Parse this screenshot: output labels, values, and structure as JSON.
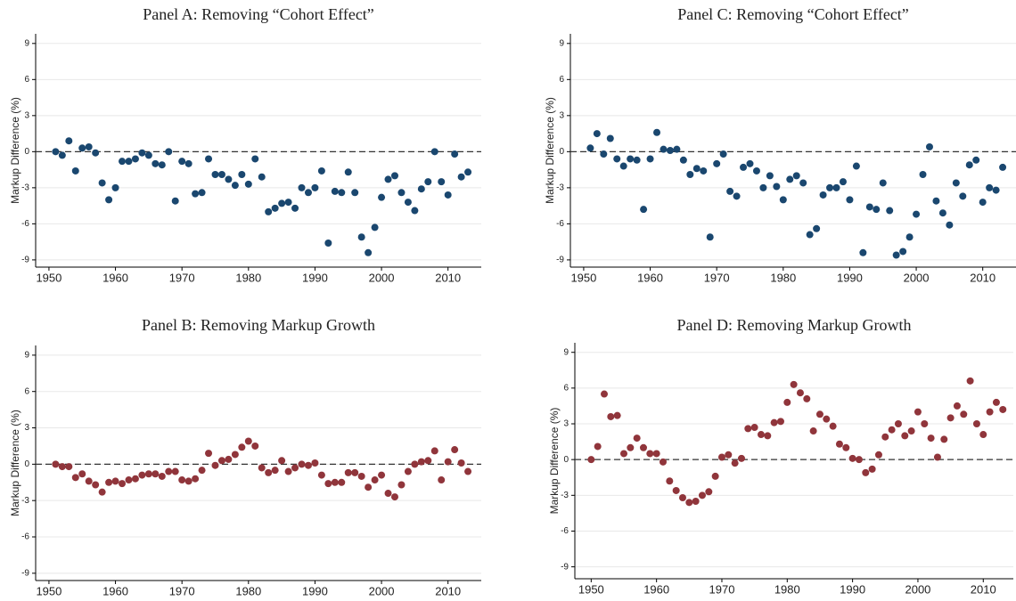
{
  "chart_data": [
    {
      "type": "scatter",
      "title": "Panel A: Removing “Cohort Effect”",
      "y_label": "Markup Difference (%)",
      "color": "#1a476f",
      "x": [
        1951,
        1952,
        1953,
        1954,
        1955,
        1956,
        1957,
        1958,
        1959,
        1960,
        1961,
        1962,
        1963,
        1964,
        1965,
        1966,
        1967,
        1968,
        1969,
        1970,
        1971,
        1972,
        1973,
        1974,
        1975,
        1976,
        1977,
        1978,
        1979,
        1980,
        1981,
        1982,
        1983,
        1984,
        1985,
        1986,
        1987,
        1988,
        1989,
        1990,
        1991,
        1992,
        1993,
        1994,
        1995,
        1996,
        1997,
        1998,
        1999,
        2000,
        2001,
        2002,
        2003,
        2004,
        2005,
        2006,
        2007,
        2008,
        2009,
        2010,
        2011,
        2012,
        2013
      ],
      "values": [
        0,
        -0.3,
        0.9,
        -1.6,
        0.3,
        0.4,
        -0.1,
        -2.6,
        -4.0,
        -3.0,
        -0.8,
        -0.8,
        -0.6,
        -0.1,
        -0.3,
        -1.0,
        -1.1,
        0,
        -4.1,
        -0.8,
        -1.0,
        -3.5,
        -3.4,
        -0.6,
        -1.9,
        -1.9,
        -2.3,
        -2.8,
        -1.9,
        -2.7,
        -0.6,
        -2.1,
        -5.0,
        -4.7,
        -4.3,
        -4.2,
        -4.7,
        -3.0,
        -3.4,
        -3.0,
        -1.6,
        -7.6,
        -3.3,
        -3.4,
        -1.7,
        -3.4,
        -7.1,
        -8.4,
        -6.3,
        -3.8,
        -2.3,
        -2.0,
        -3.4,
        -4.2,
        -4.9,
        -3.1,
        -2.5,
        0,
        -2.5,
        -3.6,
        -0.2,
        -2.1,
        -1.7
      ],
      "xlim": [
        1948,
        2015
      ],
      "ylim": [
        -9.6,
        9.8
      ],
      "xticks": [
        1950,
        1960,
        1970,
        1980,
        1990,
        2000,
        2010
      ],
      "yticks": [
        -9,
        -6,
        -3,
        0,
        3,
        6,
        9
      ],
      "reference_line": 0,
      "grid": true
    },
    {
      "type": "scatter",
      "title": "Panel C: Removing “Cohort Effect”",
      "y_label": "Markup Difference (%)",
      "color": "#1a476f",
      "x": [
        1951,
        1952,
        1953,
        1954,
        1955,
        1956,
        1957,
        1958,
        1959,
        1960,
        1961,
        1962,
        1963,
        1964,
        1965,
        1966,
        1967,
        1968,
        1969,
        1970,
        1971,
        1972,
        1973,
        1974,
        1975,
        1976,
        1977,
        1978,
        1979,
        1980,
        1981,
        1982,
        1983,
        1984,
        1985,
        1986,
        1987,
        1988,
        1989,
        1990,
        1991,
        1992,
        1993,
        1994,
        1995,
        1996,
        1997,
        1998,
        1999,
        2000,
        2001,
        2002,
        2003,
        2004,
        2005,
        2006,
        2007,
        2008,
        2009,
        2010,
        2011,
        2012,
        2013
      ],
      "values": [
        0.3,
        1.5,
        -0.2,
        1.1,
        -0.6,
        -1.2,
        -0.6,
        -0.7,
        -4.8,
        -0.6,
        1.6,
        0.2,
        0.1,
        0.2,
        -0.7,
        -1.9,
        -1.4,
        -1.6,
        -7.1,
        -1.0,
        -0.2,
        -3.3,
        -3.7,
        -1.3,
        -1.0,
        -1.6,
        -3.0,
        -2.0,
        -2.9,
        -4.0,
        -2.3,
        -2.0,
        -2.6,
        -6.9,
        -6.4,
        -3.6,
        -3.0,
        -3.0,
        -2.5,
        -4.0,
        -1.2,
        -8.4,
        -4.6,
        -4.8,
        -2.6,
        -4.9,
        -8.6,
        -8.3,
        -7.1,
        -5.2,
        -1.9,
        0.4,
        -4.1,
        -5.1,
        -6.1,
        -2.6,
        -3.7,
        -1.1,
        -0.7,
        -4.2,
        -3.0,
        -3.2,
        -1.3
      ],
      "xlim": [
        1948,
        2015
      ],
      "ylim": [
        -9.6,
        9.8
      ],
      "xticks": [
        1950,
        1960,
        1970,
        1980,
        1990,
        2000,
        2010
      ],
      "yticks": [
        -9,
        -6,
        -3,
        0,
        3,
        6,
        9
      ],
      "reference_line": 0,
      "grid": true
    },
    {
      "type": "scatter",
      "title": "Panel B: Removing Markup Growth",
      "y_label": "Markup Difference (%)",
      "color": "#90353b",
      "x": [
        1951,
        1952,
        1953,
        1954,
        1955,
        1956,
        1957,
        1958,
        1959,
        1960,
        1961,
        1962,
        1963,
        1964,
        1965,
        1966,
        1967,
        1968,
        1969,
        1970,
        1971,
        1972,
        1973,
        1974,
        1975,
        1976,
        1977,
        1978,
        1979,
        1980,
        1981,
        1982,
        1983,
        1984,
        1985,
        1986,
        1987,
        1988,
        1989,
        1990,
        1991,
        1992,
        1993,
        1994,
        1995,
        1996,
        1997,
        1998,
        1999,
        2000,
        2001,
        2002,
        2003,
        2004,
        2005,
        2006,
        2007,
        2008,
        2009,
        2010,
        2011,
        2012,
        2013
      ],
      "values": [
        0,
        -0.2,
        -0.2,
        -1.1,
        -0.8,
        -1.4,
        -1.7,
        -2.3,
        -1.5,
        -1.4,
        -1.6,
        -1.3,
        -1.2,
        -0.9,
        -0.8,
        -0.8,
        -1.0,
        -0.6,
        -0.6,
        -1.3,
        -1.4,
        -1.2,
        -0.5,
        0.9,
        -0.1,
        0.3,
        0.4,
        0.8,
        1.4,
        1.9,
        1.5,
        -0.3,
        -0.7,
        -0.5,
        0.3,
        -0.6,
        -0.3,
        0,
        -0.1,
        0.1,
        -0.9,
        -1.6,
        -1.5,
        -1.5,
        -0.7,
        -0.7,
        -1.0,
        -1.9,
        -1.3,
        -0.9,
        -2.4,
        -2.7,
        -1.7,
        -0.6,
        0,
        0.2,
        0.3,
        1.1,
        -1.3,
        0.2,
        1.2,
        0.1,
        -0.6
      ],
      "xlim": [
        1948,
        2015
      ],
      "ylim": [
        -9.6,
        9.8
      ],
      "xticks": [
        1950,
        1960,
        1970,
        1980,
        1990,
        2000,
        2010
      ],
      "yticks": [
        -9,
        -6,
        -3,
        0,
        3,
        6,
        9
      ],
      "reference_line": 0,
      "grid": true
    },
    {
      "type": "scatter",
      "title": "Panel D: Removing Markup Growth",
      "y_label": "Markup Difference (%)",
      "color": "#90353b",
      "x": [
        1950,
        1951,
        1952,
        1953,
        1954,
        1955,
        1956,
        1957,
        1958,
        1959,
        1960,
        1961,
        1962,
        1963,
        1964,
        1965,
        1966,
        1967,
        1968,
        1969,
        1970,
        1971,
        1972,
        1973,
        1974,
        1975,
        1976,
        1977,
        1978,
        1979,
        1980,
        1981,
        1982,
        1983,
        1984,
        1985,
        1986,
        1987,
        1988,
        1989,
        1990,
        1991,
        1992,
        1993,
        1994,
        1995,
        1996,
        1997,
        1998,
        1999,
        2000,
        2001,
        2002,
        2003,
        2004,
        2005,
        2006,
        2007,
        2008,
        2009,
        2010,
        2011,
        2012,
        2013
      ],
      "values": [
        0,
        1.1,
        5.5,
        3.6,
        3.7,
        0.5,
        1.0,
        1.8,
        1.0,
        0.5,
        0.5,
        -0.2,
        -1.8,
        -2.6,
        -3.2,
        -3.6,
        -3.5,
        -3.0,
        -2.7,
        -1.4,
        0.2,
        0.4,
        -0.3,
        0.1,
        2.6,
        2.7,
        2.1,
        2.0,
        3.1,
        3.2,
        4.8,
        6.3,
        5.6,
        5.1,
        2.4,
        3.8,
        3.4,
        2.8,
        1.3,
        1.0,
        0.1,
        0,
        -1.1,
        -0.8,
        0.4,
        1.9,
        2.5,
        3.0,
        2.0,
        2.4,
        4.0,
        3.0,
        1.8,
        0.2,
        1.7,
        3.5,
        4.5,
        3.8,
        6.6,
        3.0,
        2.1,
        4.0,
        4.8,
        4.2
      ],
      "xlim": [
        1947.5,
        2014.6
      ],
      "ylim": [
        -10,
        9.8
      ],
      "xticks": [
        1950,
        1960,
        1970,
        1980,
        1990,
        2000,
        2010
      ],
      "yticks": [
        -9,
        -6,
        -3,
        0,
        3,
        6,
        9
      ],
      "reference_line": 0,
      "grid": true
    }
  ]
}
